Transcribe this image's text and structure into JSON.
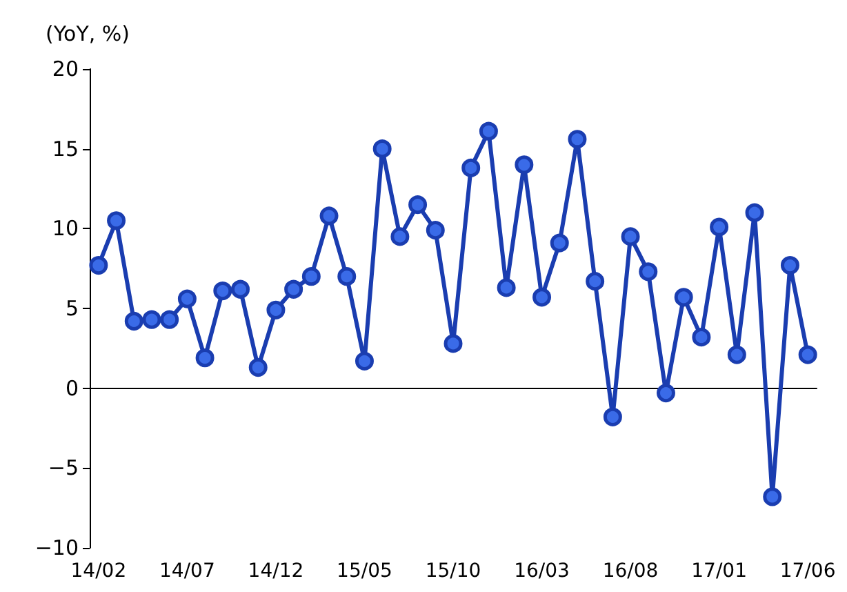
{
  "chart_data": {
    "type": "line",
    "ylabel": "(YoY, %)",
    "categories": [
      "14/02",
      null,
      null,
      null,
      null,
      "14/07",
      null,
      null,
      null,
      null,
      "14/12",
      null,
      null,
      null,
      null,
      "15/05",
      null,
      null,
      null,
      null,
      "15/10",
      null,
      null,
      null,
      null,
      "16/03",
      null,
      null,
      null,
      null,
      "16/08",
      null,
      null,
      null,
      null,
      "17/01",
      null,
      null,
      null,
      null,
      "17/06"
    ],
    "series": [
      {
        "color": "#1a3db0",
        "values": [
          7.7,
          10.5,
          4.2,
          4.3,
          4.3,
          5.6,
          1.9,
          6.1,
          6.2,
          1.3,
          4.9,
          6.2,
          7.0,
          10.8,
          7.0,
          1.7,
          15.0,
          9.5,
          11.5,
          9.9,
          2.8,
          13.8,
          16.1,
          6.3,
          14.0,
          5.7,
          9.1,
          15.6,
          6.7,
          -1.8,
          9.5,
          7.3,
          -0.3,
          5.7,
          3.2,
          10.1,
          2.1,
          11.0,
          -6.8,
          7.7,
          2.1
        ]
      }
    ],
    "ylim": [
      -10,
      20
    ],
    "yticks": [
      {
        "value": -10,
        "label": "−10"
      },
      {
        "value": -5,
        "label": "−5"
      },
      0,
      5,
      10,
      15,
      20
    ],
    "marker": "circle",
    "line_style": "solid"
  }
}
